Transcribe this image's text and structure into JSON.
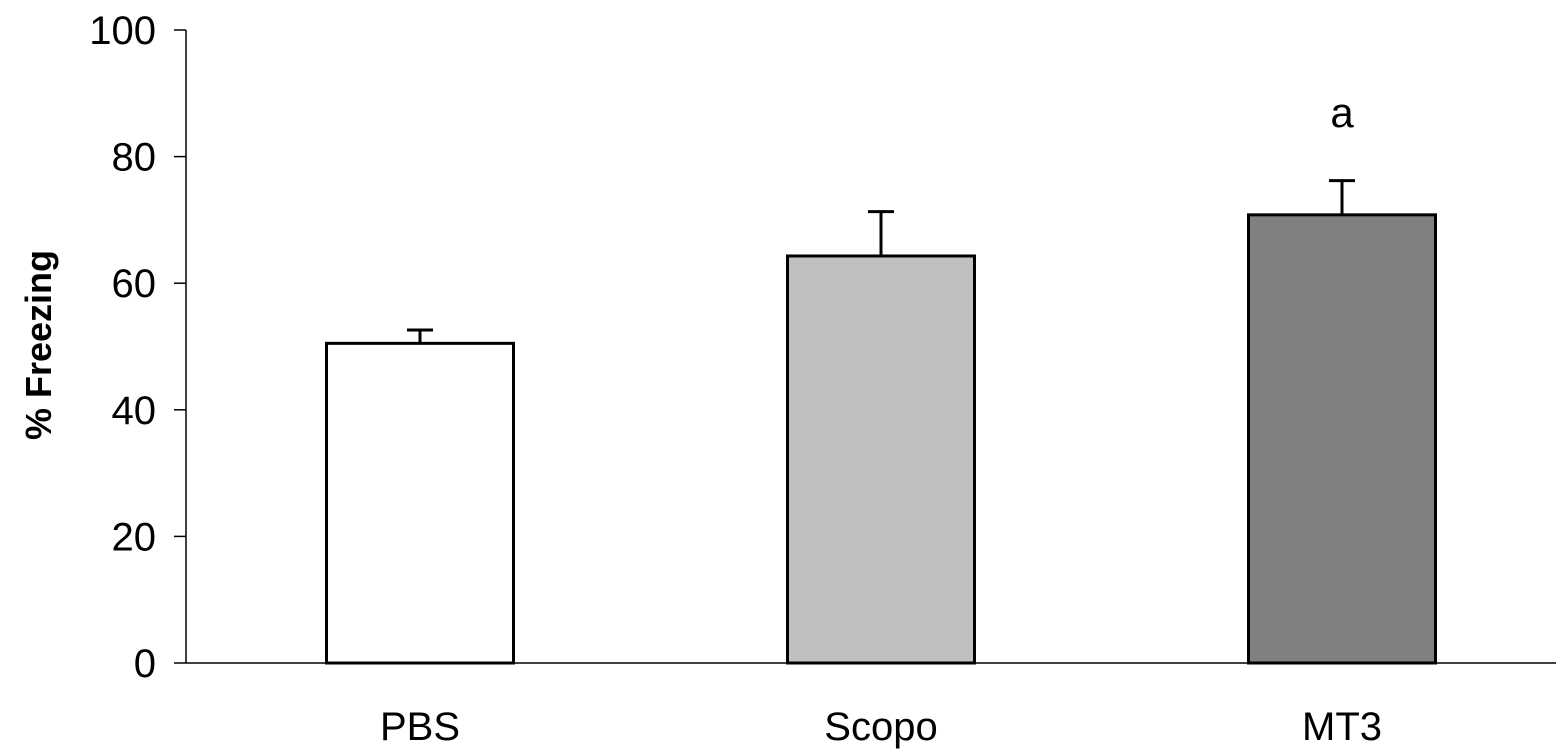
{
  "chart_data": {
    "type": "bar",
    "title": "",
    "xlabel": "",
    "ylabel": "% Freezing",
    "ylim": [
      0,
      100
    ],
    "yticks": [
      0,
      20,
      40,
      60,
      80,
      100
    ],
    "grid": false,
    "legend": "none",
    "categories": [
      "PBS",
      "Scopo",
      "MT3"
    ],
    "series": [
      {
        "values": [
          50.5,
          64.3,
          70.8
        ],
        "errors": [
          2.1,
          7.0,
          5.4
        ],
        "colors": [
          "#ffffff",
          "#c0c0c0",
          "#808080"
        ]
      }
    ],
    "annotations": [
      {
        "category": "MT3",
        "text": "a"
      }
    ]
  }
}
